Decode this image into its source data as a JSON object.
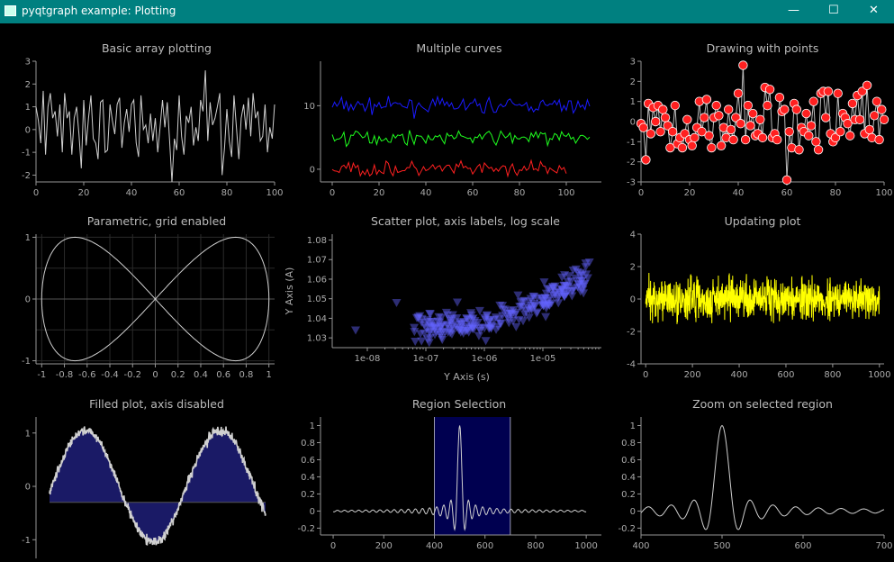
{
  "window": {
    "title": "pyqtgraph example: Plotting",
    "minimize_glyph": "—",
    "maximize_glyph": "☐",
    "close_glyph": "✕",
    "icon": "app-window-icon"
  },
  "colors": {
    "background": "#000000",
    "titlebar": "#008080",
    "axis": "#969696",
    "white_curve": "#cfcfcf",
    "blue": "#1a1aff",
    "green": "#1fff1f",
    "red": "#ff2020",
    "yellow": "#ffff00",
    "marker": "#ff2020",
    "scatter": "#6464ff",
    "fill": "#1a1a66",
    "region": "#000050"
  },
  "chart_data": [
    {
      "type": "line",
      "title": "Basic array plotting",
      "xticks": [
        "0",
        "20",
        "40",
        "60",
        "80",
        "100"
      ],
      "yticks": [
        "-2",
        "-1",
        "0",
        "1",
        "2",
        "3"
      ],
      "xlim": [
        0,
        100
      ],
      "ylim": [
        -2.3,
        3
      ],
      "series": [
        {
          "values": [
            1.0,
            0.4,
            -0.6,
            1.7,
            -1.1,
            1.0,
            1.6,
            0.5,
            0.8,
            -0.3,
            1.1,
            -1.0,
            1.6,
            0.5,
            0.8,
            -1.1,
            0.5,
            1.0,
            -0.2,
            -1.7,
            1.3,
            -0.7,
            0.5,
            1.5,
            -0.4,
            -0.6,
            -1.3,
            1.2,
            1.3,
            -1.0,
            -0.9,
            1.1,
            0.4,
            -0.2,
            1.1,
            1.4,
            -0.8,
            0.3,
            0.9,
            -0.1,
            1.1,
            1.3,
            -0.6,
            -1.2,
            1.5,
            0.0,
            0.2,
            -0.6,
            0.7,
            -0.5,
            0.5,
            -1.0,
            0.1,
            1.3,
            0.1,
            1.2,
            -0.5,
            -2.3,
            -0.4,
            -0.9,
            1.5,
            -0.3,
            -1.1,
            0.6,
            0.3,
            1.0,
            -0.7,
            0.1,
            -0.5,
            1.3,
            0.8,
            2.6,
            -0.5,
            1.2,
            0.2,
            0.5,
            1.0,
            1.6,
            -2.0,
            -0.8,
            0.9,
            -0.5,
            -1.2,
            1.5,
            0.1,
            -1.3,
            0.5,
            1.1,
            0.0,
            1.4,
            -0.3,
            1.6,
            0.5,
            0.8,
            -0.5,
            -0.3,
            1.1,
            -1.0,
            0.1,
            -0.4,
            1.1
          ]
        }
      ]
    },
    {
      "type": "line",
      "title": "Multiple curves",
      "xticks": [
        "0",
        "20",
        "40",
        "60",
        "80",
        "100"
      ],
      "yticks": [
        "0",
        "10"
      ],
      "xlim": [
        -5,
        115
      ],
      "ylim": [
        -2,
        17
      ]
    },
    {
      "type": "scatter",
      "title": "Drawing with points",
      "xticks": [
        "0",
        "20",
        "40",
        "60",
        "80",
        "100"
      ],
      "yticks": [
        "-3",
        "-2",
        "-1",
        "0",
        "1",
        "2",
        "3"
      ],
      "xlim": [
        0,
        100
      ],
      "ylim": [
        -3,
        3
      ],
      "series": [
        {
          "values": [
            -0.1,
            -0.3,
            -1.9,
            0.9,
            -0.6,
            0.7,
            0.0,
            0.8,
            -0.5,
            0.6,
            0.2,
            -0.2,
            -1.3,
            -0.5,
            0.8,
            -1.1,
            -0.8,
            -1.3,
            -0.6,
            0.1,
            -0.9,
            -1.2,
            -0.8,
            -0.3,
            1.0,
            -0.5,
            0.2,
            1.1,
            -0.7,
            -1.3,
            0.2,
            0.8,
            0.3,
            -1.2,
            -0.3,
            -0.8,
            0.6,
            -0.4,
            -0.9,
            0.2,
            1.4,
            -0.1,
            2.8,
            -0.9,
            0.8,
            -0.2,
            0.4,
            -0.7,
            -0.6,
            0.1,
            -0.8,
            1.7,
            0.8,
            1.6,
            -0.8,
            -0.6,
            -0.9,
            1.2,
            0.5,
            0.6,
            -2.9,
            -0.5,
            -1.3,
            0.9,
            0.6,
            -1.4,
            -0.3,
            -0.5,
            0.4,
            -0.7,
            -0.2,
            1.0,
            -1.0,
            -1.4,
            1.4,
            1.5,
            0.2,
            1.5,
            -0.6,
            -1.0,
            -0.8,
            1.4,
            -0.5,
            0.4,
            0.2,
            -0.1,
            -0.7,
            0.9,
            0.1,
            1.3,
            0.1,
            1.5,
            -0.6,
            1.8,
            -0.4,
            -0.8,
            0.3,
            1.0,
            -0.9,
            0.6,
            0.1
          ]
        }
      ]
    },
    {
      "type": "line",
      "title": "Parametric, grid enabled",
      "xticks": [
        "-1",
        "-0.8",
        "-0.6",
        "-0.4",
        "-0.2",
        "0",
        "0.2",
        "0.4",
        "0.6",
        "0.8",
        "1"
      ],
      "yticks": [
        "-1",
        "0",
        "1"
      ],
      "xlim": [
        -1.05,
        1.05
      ],
      "ylim": [
        -1.05,
        1.05
      ],
      "grid": true
    },
    {
      "type": "scatter",
      "title": "Scatter plot, axis labels, log scale",
      "xlabel": "Y Axis (s)",
      "ylabel": "Y Axis (A)",
      "xscale": "log",
      "xticks": [
        "1e-08",
        "1e-07",
        "1e-06",
        "1e-05"
      ],
      "yticks": [
        "1.03",
        "1.04",
        "1.05",
        "1.06",
        "1.07",
        "1.08"
      ],
      "xlim": [
        -8.6,
        -4.0
      ],
      "ylim": [
        1.025,
        1.083
      ]
    },
    {
      "type": "line",
      "title": "Updating plot",
      "xticks": [
        "0",
        "200",
        "400",
        "600",
        "800",
        "1000"
      ],
      "yticks": [
        "-4",
        "-2",
        "0",
        "2",
        "4"
      ],
      "xlim": [
        -20,
        1020
      ],
      "ylim": [
        -4,
        4
      ]
    },
    {
      "type": "area",
      "title": "Filled plot, axis disabled",
      "yticks": [
        "-1",
        "0",
        "1"
      ],
      "ylim": [
        -1.35,
        1.3
      ],
      "fill_baseline": -0.3
    },
    {
      "type": "line",
      "title": "Region Selection",
      "xticks": [
        "0",
        "200",
        "400",
        "600",
        "800",
        "1000"
      ],
      "yticks": [
        "-0.2",
        "0",
        "0.2",
        "0.4",
        "0.6",
        "0.8",
        "1"
      ],
      "xlim": [
        -50,
        1060
      ],
      "ylim": [
        -0.28,
        1.1
      ],
      "region": [
        400,
        700
      ]
    },
    {
      "type": "line",
      "title": "Zoom on selected region",
      "xticks": [
        "400",
        "500",
        "600",
        "700"
      ],
      "yticks": [
        "-0.2",
        "0",
        "0.2",
        "0.4",
        "0.6",
        "0.8",
        "1"
      ],
      "xlim": [
        400,
        700
      ],
      "ylim": [
        -0.28,
        1.1
      ]
    }
  ]
}
